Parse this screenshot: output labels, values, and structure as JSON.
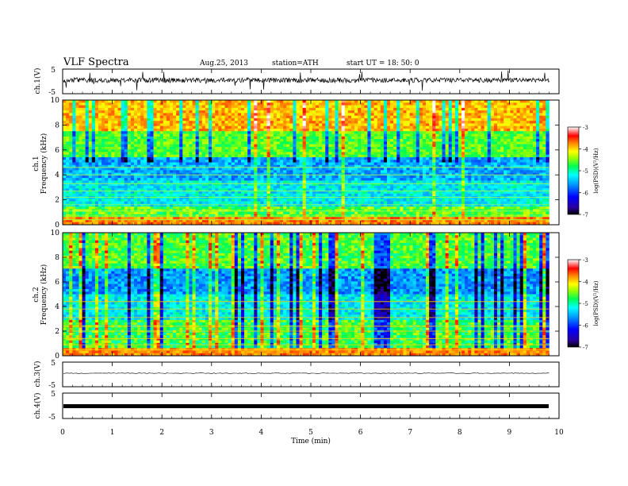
{
  "header": {
    "title": "VLF  Spectra",
    "date": "Aug.25, 2013",
    "station": "station=ATH",
    "start": "start  UT  =   18: 50: 0"
  },
  "chart_data": {
    "type": "heatmap",
    "xlabel": "Time  (min)",
    "xlim": [
      0,
      10
    ],
    "xticks": [
      "0",
      "1",
      "2",
      "3",
      "4",
      "5",
      "6",
      "7",
      "8",
      "9",
      "10"
    ],
    "panels": [
      {
        "id": "ch1-waveform",
        "type": "line",
        "ylabel": "ch.1(V)",
        "ylim": [
          -5,
          5
        ],
        "yticks": [
          "5",
          "-5"
        ]
      },
      {
        "id": "ch1-spectrogram",
        "type": "heatmap",
        "ylabel_top": "ch.1",
        "ylabel": "Frequency  (kHz)",
        "ylim": [
          0,
          10
        ],
        "yticks": [
          "0",
          "2",
          "4",
          "6",
          "8",
          "10"
        ],
        "colorbar": {
          "label": "log(PSD)(V²/Hz)",
          "range": [
            -7,
            -3
          ],
          "ticks": [
            "-3",
            "-4",
            "-5",
            "-6",
            "-7"
          ]
        }
      },
      {
        "id": "ch2-spectrogram",
        "type": "heatmap",
        "ylabel_top": "ch.2",
        "ylabel": "Frequency  (kHz)",
        "ylim": [
          0,
          10
        ],
        "yticks": [
          "0",
          "2",
          "4",
          "6",
          "8",
          "10"
        ],
        "colorbar": {
          "label": "log(PSD)(V²/Hz)",
          "range": [
            -7,
            -3
          ],
          "ticks": [
            "-3",
            "-4",
            "-5",
            "-6",
            "-7"
          ]
        }
      },
      {
        "id": "ch3-waveform",
        "type": "line",
        "ylabel": "ch.3(V)",
        "ylim": [
          -5,
          5
        ],
        "yticks": [
          "5",
          "-5"
        ]
      },
      {
        "id": "ch4-waveform",
        "type": "line",
        "ylabel": "ch.4(V)",
        "ylim": [
          -5,
          5
        ],
        "yticks": [
          "5",
          "-5"
        ]
      }
    ],
    "data_end_min": 9.8,
    "grid": false
  }
}
